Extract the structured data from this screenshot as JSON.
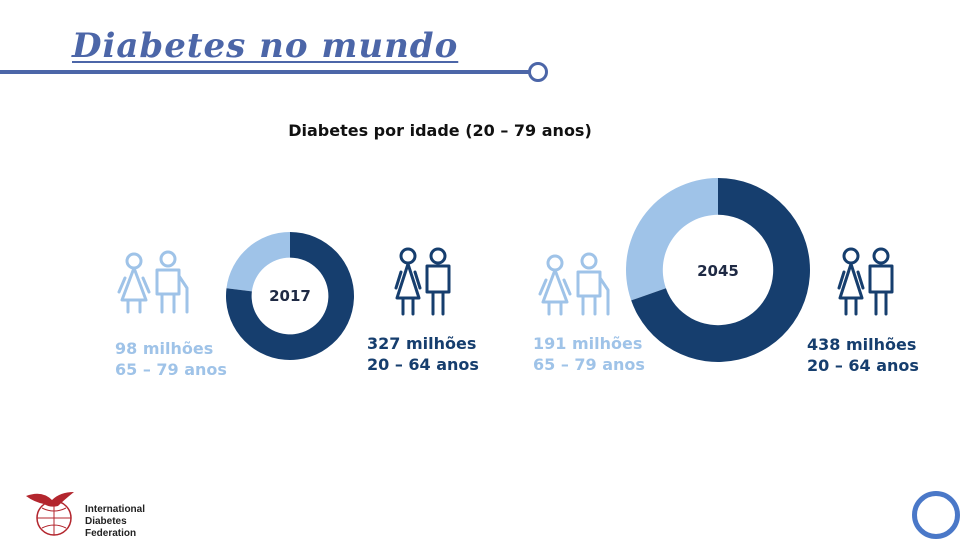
{
  "slide": {
    "title": "Diabetes no mundo",
    "subtitle": "Diabetes por idade (20 – 79 anos)"
  },
  "colors": {
    "light": "#9fc3e8",
    "dark": "#163e6e",
    "accent": "#4c66a8"
  },
  "icons": [
    "elderly-couple-icon",
    "adult-couple-icon",
    "idf-logo-icon"
  ],
  "chart_data": [
    {
      "type": "pie",
      "donut": true,
      "center_label": "2017",
      "slices": [
        {
          "label": "65 – 79 anos",
          "value": 98
        },
        {
          "label": "20 – 64 anos",
          "value": 327
        }
      ]
    },
    {
      "type": "pie",
      "donut": true,
      "center_label": "2045",
      "slices": [
        {
          "label": "65 – 79 anos",
          "value": 191
        },
        {
          "label": "20 – 64 anos",
          "value": 438
        }
      ]
    }
  ],
  "stats": {
    "y2017_old_value": "98 milhões",
    "y2017_old_age": "65 – 79 anos",
    "y2017_young_value": "327 milhões",
    "y2017_young_age": "20 – 64 anos",
    "y2045_old_value": "191 milhões",
    "y2045_old_age": "65 – 79 anos",
    "y2045_young_value": "438 milhões",
    "y2045_young_age": "20 – 64 anos"
  },
  "logo": {
    "line1": "International",
    "line2": "Diabetes",
    "line3": "Federation"
  }
}
